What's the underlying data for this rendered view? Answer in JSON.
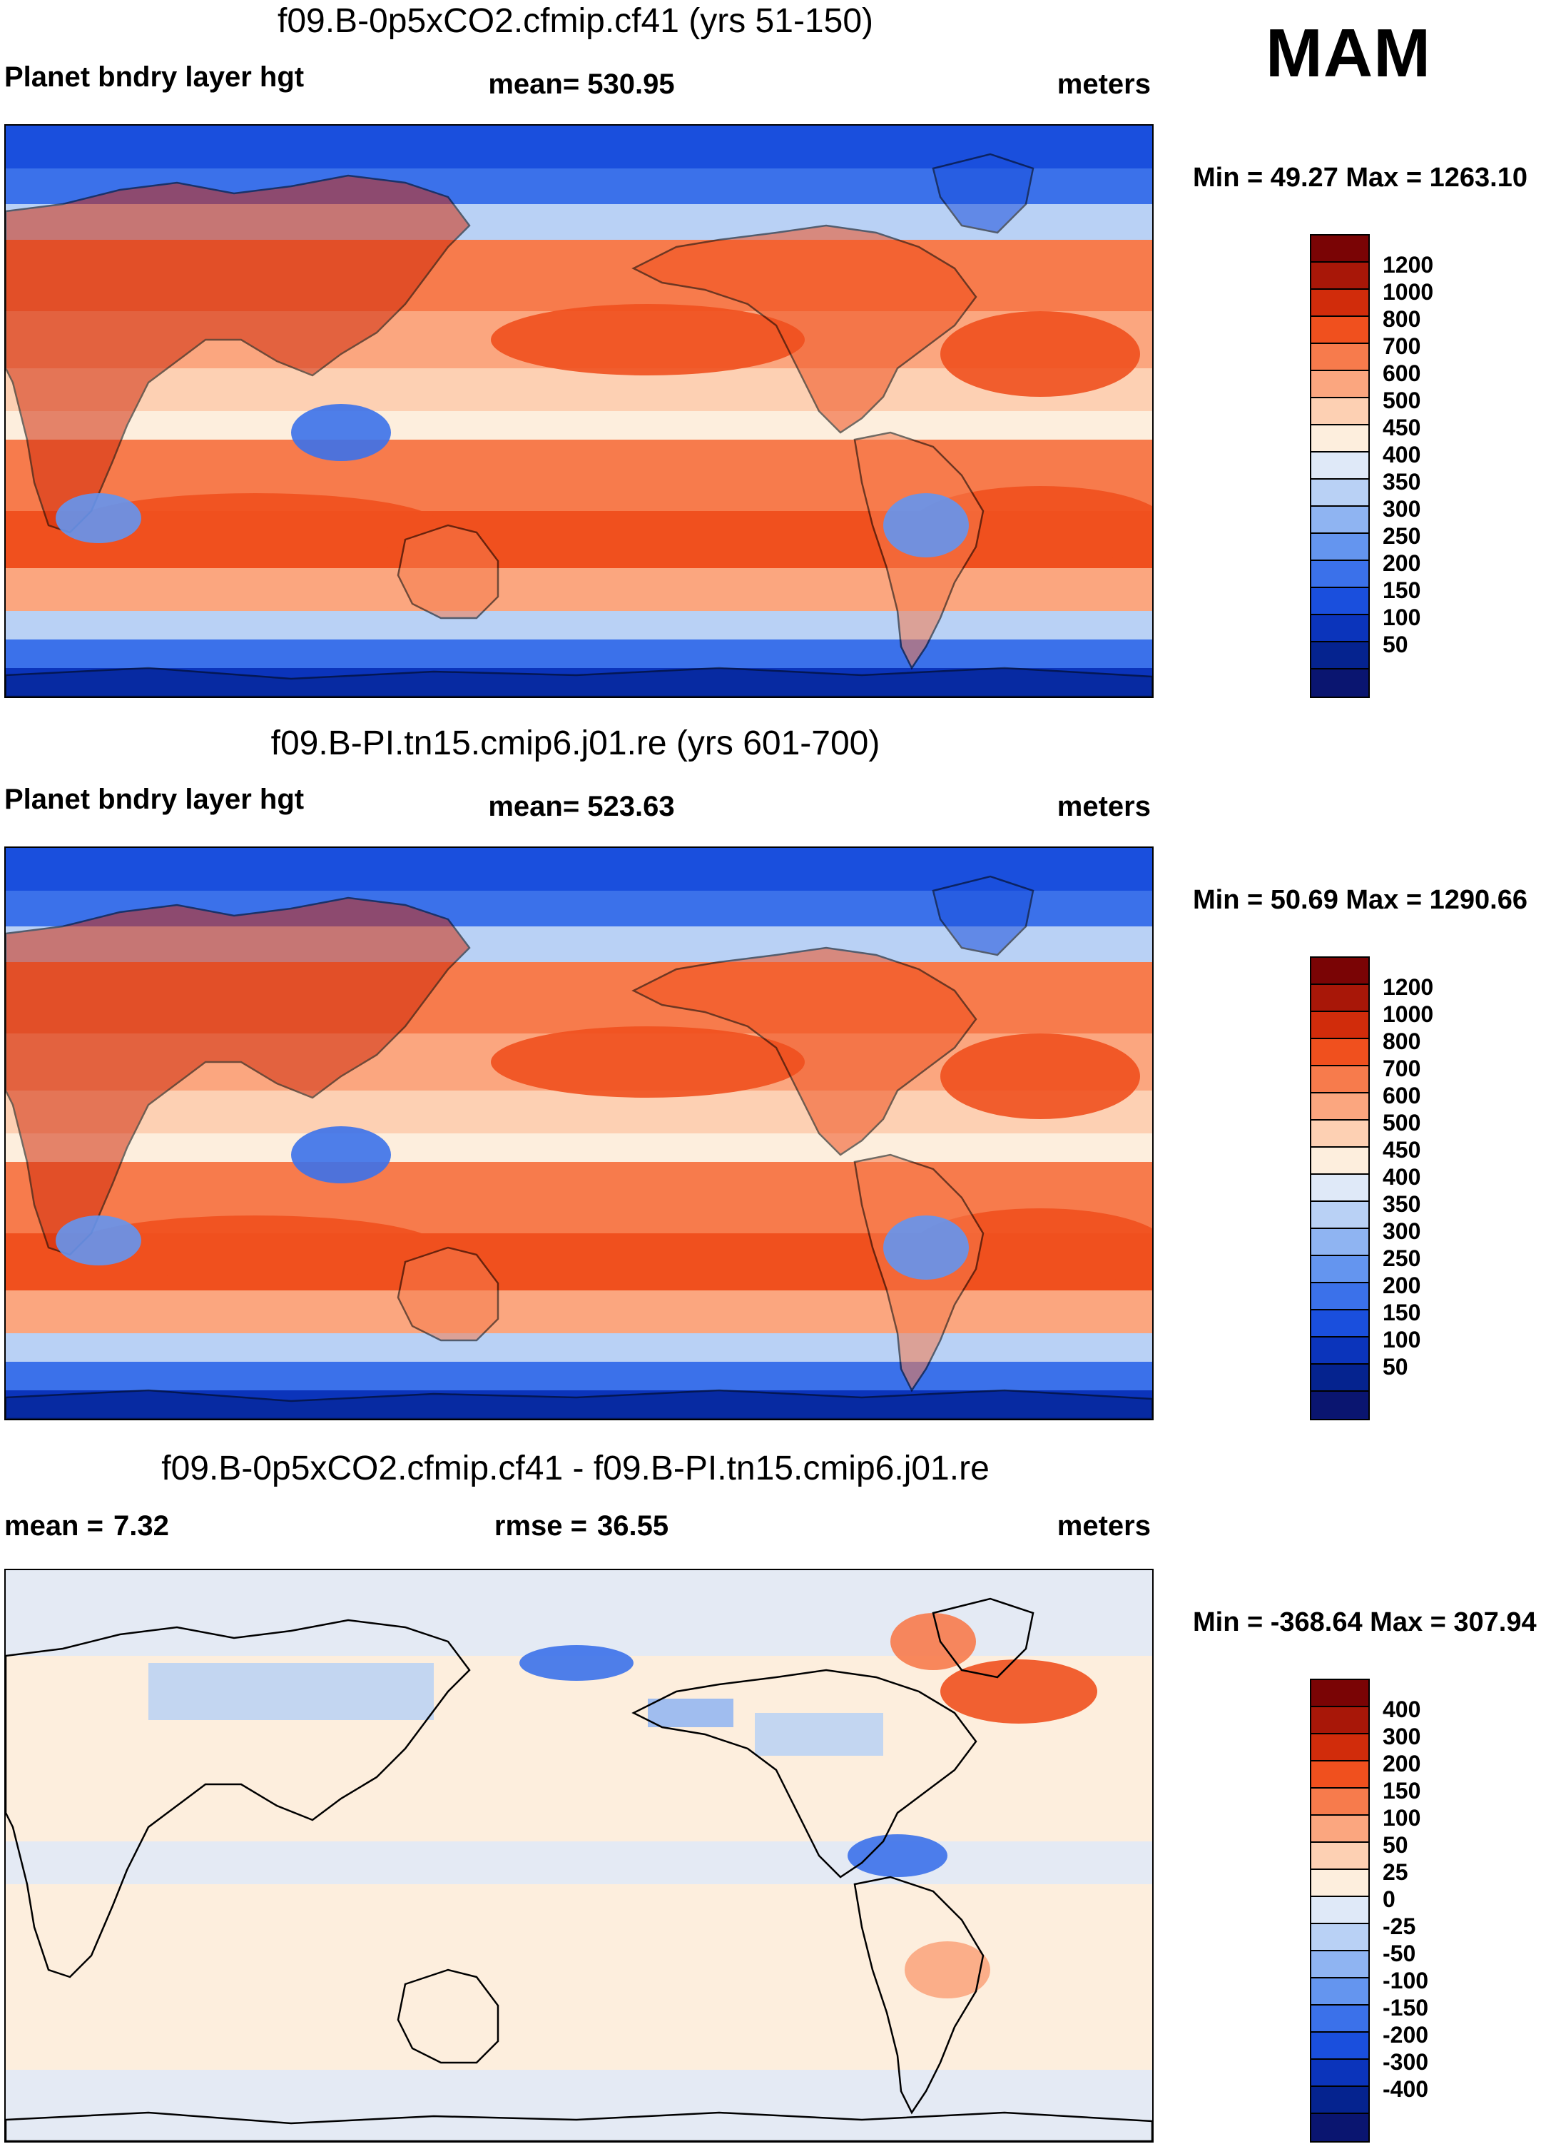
{
  "season": "MAM",
  "panels": [
    {
      "title": "f09.B-0p5xCO2.cfmip.cf41 (yrs 51-150)",
      "left_label": "Planet bndry layer hgt",
      "mid_label": "mean= 530.95",
      "right_label": "meters",
      "minmax": "Min =  49.27 Max = 1263.10",
      "map_kind": "absolute",
      "colorbar": {
        "colors": [
          "#7a0405",
          "#a81708",
          "#d12c0b",
          "#f0501e",
          "#f77b4c",
          "#fba67f",
          "#fdd0b3",
          "#fdeedd",
          "#dfe9f8",
          "#b9d1f5",
          "#8fb4f2",
          "#6495ef",
          "#3b71ea",
          "#1a4fdd",
          "#0b34bb",
          "#05238f",
          "#0a1570"
        ],
        "labels": [
          "1200",
          "1000",
          "800",
          "700",
          "600",
          "500",
          "450",
          "400",
          "350",
          "300",
          "250",
          "200",
          "150",
          "100",
          "50"
        ]
      }
    },
    {
      "title": "f09.B-PI.tn15.cmip6.j01.re (yrs 601-700)",
      "left_label": "Planet bndry layer hgt",
      "mid_label": "mean= 523.63",
      "right_label": "meters",
      "minmax": "Min =  50.69 Max = 1290.66",
      "map_kind": "absolute",
      "colorbar": {
        "colors": [
          "#7a0405",
          "#a81708",
          "#d12c0b",
          "#f0501e",
          "#f77b4c",
          "#fba67f",
          "#fdd0b3",
          "#fdeedd",
          "#dfe9f8",
          "#b9d1f5",
          "#8fb4f2",
          "#6495ef",
          "#3b71ea",
          "#1a4fdd",
          "#0b34bb",
          "#05238f",
          "#0a1570"
        ],
        "labels": [
          "1200",
          "1000",
          "800",
          "700",
          "600",
          "500",
          "450",
          "400",
          "350",
          "300",
          "250",
          "200",
          "150",
          "100",
          "50"
        ]
      }
    },
    {
      "title": "f09.B-0p5xCO2.cfmip.cf41 - f09.B-PI.tn15.cmip6.j01.re",
      "left_label": "mean =",
      "left_value": "7.32",
      "mid_label": "rmse =",
      "mid_value": "36.55",
      "right_label": "meters",
      "minmax": "Min = -368.64 Max = 307.94",
      "map_kind": "difference",
      "colorbar": {
        "colors": [
          "#7a0405",
          "#a81708",
          "#d12c0b",
          "#f0501e",
          "#f77b4c",
          "#fba67f",
          "#fdd0b3",
          "#fdeedd",
          "#dfe9f8",
          "#b9d1f5",
          "#8fb4f2",
          "#6495ef",
          "#3b71ea",
          "#1a4fdd",
          "#0b34bb",
          "#05238f",
          "#0a1570"
        ],
        "labels": [
          "400",
          "300",
          "200",
          "150",
          "100",
          "50",
          "25",
          "0",
          "-25",
          "-50",
          "-100",
          "-150",
          "-200",
          "-300",
          "-400"
        ]
      }
    }
  ]
}
